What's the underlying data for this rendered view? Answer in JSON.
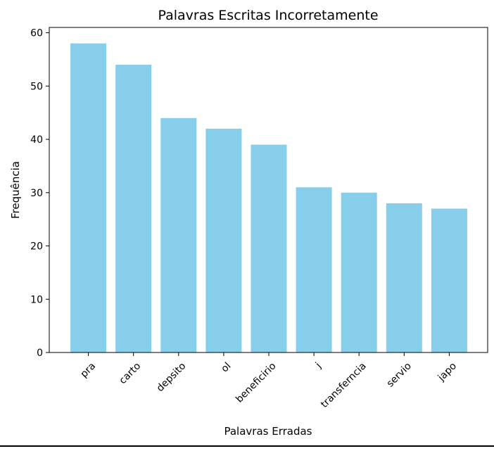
{
  "chart_data": {
    "type": "bar",
    "title": "Palavras Escritas Incorretamente",
    "xlabel": "Palavras Erradas",
    "ylabel": "Frequência",
    "categories": [
      "pra",
      "carto",
      "depsito",
      "ol",
      "beneficirio",
      "j",
      "transferncia",
      "servio",
      "japo"
    ],
    "values": [
      58,
      54,
      44,
      42,
      39,
      31,
      30,
      28,
      27
    ],
    "ylim": [
      0,
      61
    ],
    "yticks": [
      0,
      10,
      20,
      30,
      40,
      50,
      60
    ],
    "grid": false,
    "bar_color": "#87ceeb",
    "x_tick_rotation_deg": 45
  }
}
